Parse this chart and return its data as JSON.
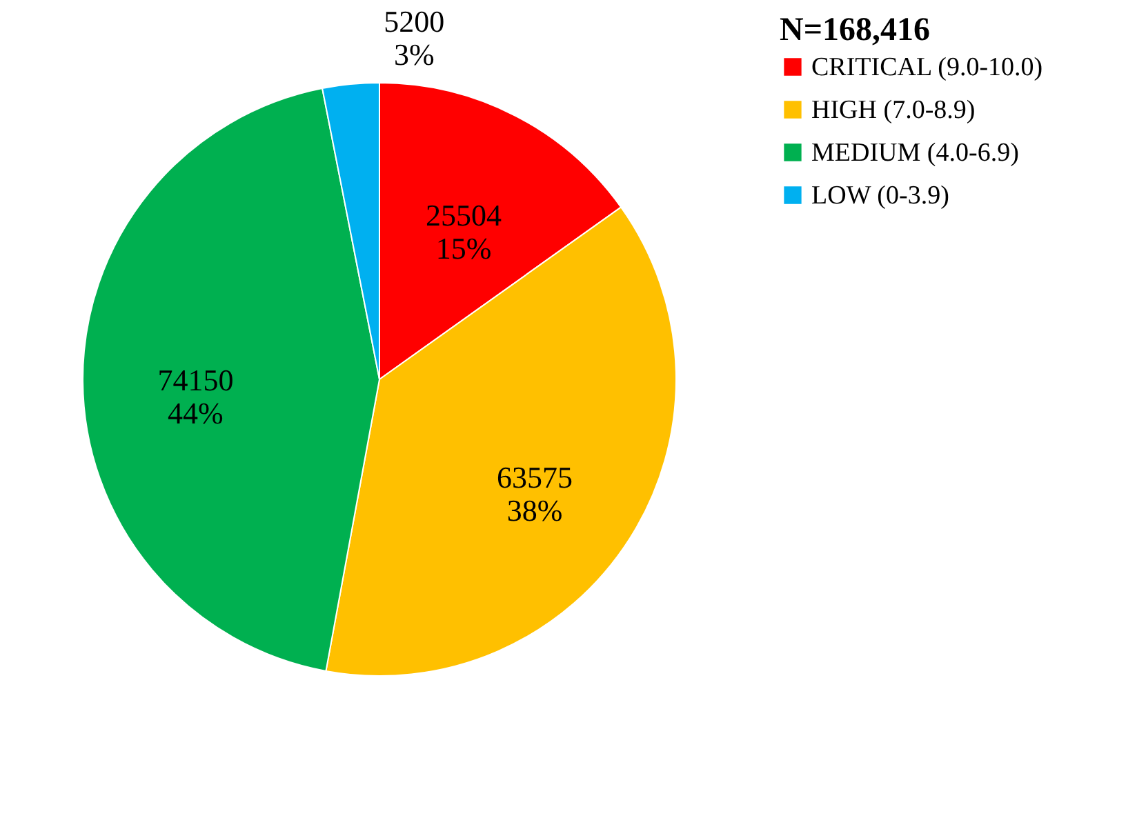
{
  "chart_data": {
    "type": "pie",
    "legend_title": "N=168,416",
    "legend": "right",
    "categories": [
      "CRITICAL (9.0-10.0)",
      "HIGH (7.0-8.9)",
      "MEDIUM (4.0-6.9)",
      "LOW (0-3.9)"
    ],
    "values": [
      25504,
      63575,
      74150,
      5200
    ],
    "colors": [
      "#ff0000",
      "#ffc000",
      "#00b050",
      "#00b0f0"
    ],
    "value_labels": [
      "25504\n15%",
      "63575\n38%",
      "74150\n44%",
      "5200\n3%"
    ]
  }
}
